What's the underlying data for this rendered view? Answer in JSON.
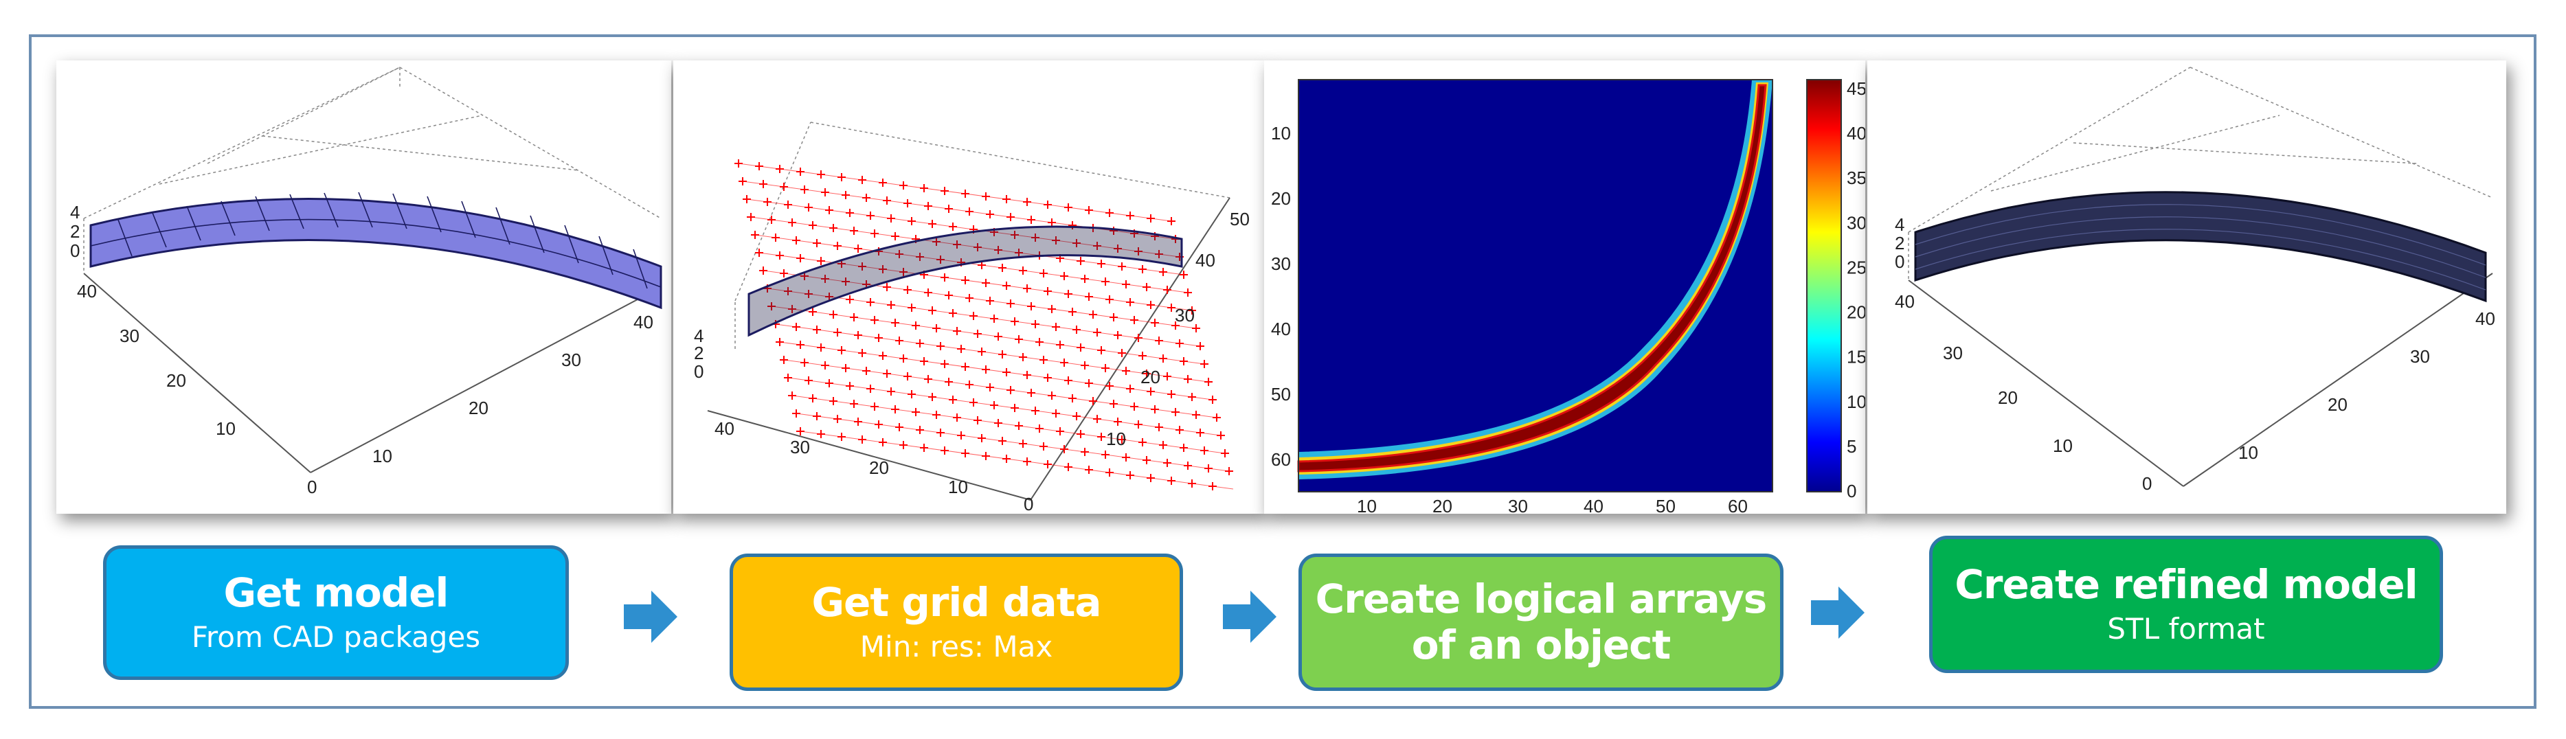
{
  "steps": [
    {
      "title": "Get model",
      "subtitle": "From CAD packages",
      "color": "#00b0f0"
    },
    {
      "title": "Get grid data",
      "subtitle": "Min: res: Max",
      "color": "#ffc000"
    },
    {
      "title_line1": "Create logical arrays",
      "title_line2": "of an object",
      "color": "#7ed04f"
    },
    {
      "title": "Create refined model",
      "subtitle": "STL format",
      "color": "#00b050"
    }
  ],
  "panel1": {
    "z_ticks": [
      "4",
      "2",
      "0"
    ],
    "y_ticks": [
      "40",
      "30",
      "20",
      "10",
      "0"
    ],
    "x_ticks": [
      "10",
      "20",
      "30",
      "40"
    ],
    "fill_color": "#8080e0"
  },
  "panel2": {
    "z_ticks": [
      "4",
      "2",
      "0"
    ],
    "y_ticks": [
      "40",
      "30",
      "20",
      "10",
      "0"
    ],
    "x_ticks": [
      "10",
      "20",
      "30",
      "40",
      "50"
    ],
    "marker_color": "#ff0000"
  },
  "panel3": {
    "y_ticks": [
      "10",
      "20",
      "30",
      "40",
      "50",
      "60"
    ],
    "x_ticks": [
      "10",
      "20",
      "30",
      "40",
      "50",
      "60"
    ],
    "colorbar_ticks": [
      "45",
      "40",
      "35",
      "30",
      "25",
      "20",
      "15",
      "10",
      "5",
      "0"
    ],
    "background_color": "#00008f"
  },
  "panel4": {
    "z_ticks": [
      "4",
      "2",
      "0"
    ],
    "y_ticks": [
      "40",
      "30",
      "20",
      "10",
      "0"
    ],
    "x_ticks": [
      "10",
      "20",
      "30",
      "40"
    ],
    "fill_color": "#2a2f55"
  },
  "arrow_color": "#2e8fcf"
}
